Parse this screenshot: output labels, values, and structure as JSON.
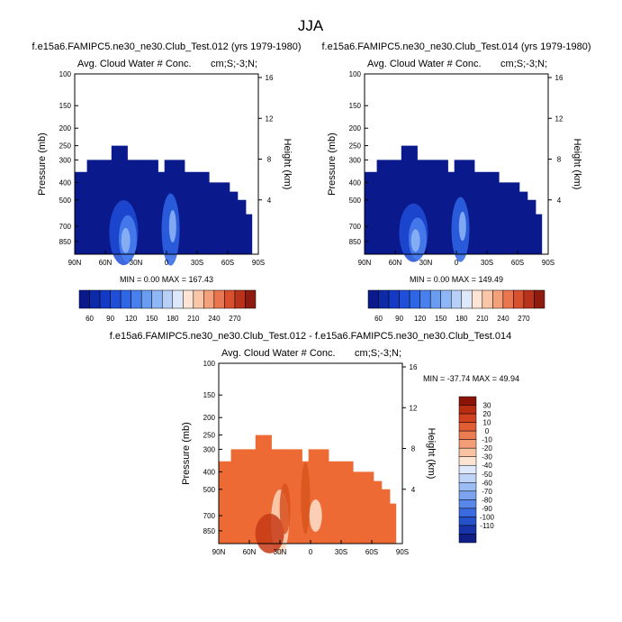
{
  "figure_title": "JJA",
  "colors": {
    "background": "#ffffff",
    "absolute_scale": [
      "#0a1a8c",
      "#0d2aa8",
      "#1439c4",
      "#1f4ed8",
      "#2f66e6",
      "#4a80ee",
      "#6a9cf2",
      "#8fb6f6",
      "#b8d0f8",
      "#dde9fb",
      "#fde4d4",
      "#f9c6a8",
      "#f4a07a",
      "#ea7650",
      "#d9502e",
      "#b9321c",
      "#8e1a10"
    ],
    "difference_scale": [
      "#0f1f86",
      "#1733a9",
      "#2450c9",
      "#3a6be0",
      "#5a88ea",
      "#7ba3f0",
      "#9cbcf4",
      "#bed3f8",
      "#dde8fb",
      "#fde3d2",
      "#f9c2a3",
      "#f49e78",
      "#ed7c52",
      "#e35d34",
      "#d2421e",
      "#b82c12",
      "#8c1407"
    ],
    "field_absolute": "#0a1a8c",
    "field_difference": "#ee6a34"
  },
  "chart_data": [
    {
      "type": "heatmap",
      "title": "f.e15a6.FAMIPC5.ne30_ne30.Club_Test.012 (yrs 1979-1980)",
      "subtitle_left": "Avg. Cloud Water # Conc.",
      "subtitle_right": "cm;S;-3;N;",
      "xlabel": "",
      "ylabel": "Pressure (mb)",
      "y2label": "Height (km)",
      "x_ticks": [
        "90N",
        "60N",
        "30N",
        "0",
        "30S",
        "60S",
        "90S"
      ],
      "x_values": [
        90,
        60,
        30,
        0,
        -30,
        -60,
        -90
      ],
      "y_ticks": [
        100,
        150,
        200,
        250,
        300,
        400,
        500,
        700,
        850
      ],
      "y2_ticks": [
        16,
        12,
        8,
        4
      ],
      "ylim": [
        1000,
        100
      ],
      "min_label": "MIN =   0.00   MAX = 167.43",
      "min": 0.0,
      "max": 167.43,
      "colorbar_labels": [
        "60",
        "90",
        "120",
        "150",
        "180",
        "210",
        "240",
        "270"
      ],
      "colorbar_levels": [
        60,
        90,
        120,
        150,
        180,
        210,
        240,
        270
      ]
    },
    {
      "type": "heatmap",
      "title": "f.e15a6.FAMIPC5.ne30_ne30.Club_Test.014 (yrs 1979-1980)",
      "subtitle_left": "Avg. Cloud Water # Conc.",
      "subtitle_right": "cm;S;-3;N;",
      "xlabel": "",
      "ylabel": "Pressure (mb)",
      "y2label": "Height (km)",
      "x_ticks": [
        "90N",
        "60N",
        "30N",
        "0",
        "30S",
        "60S",
        "90S"
      ],
      "x_values": [
        90,
        60,
        30,
        0,
        -30,
        -60,
        -90
      ],
      "y_ticks": [
        100,
        150,
        200,
        250,
        300,
        400,
        500,
        700,
        850
      ],
      "y2_ticks": [
        16,
        12,
        8,
        4
      ],
      "ylim": [
        1000,
        100
      ],
      "min_label": "MIN =   0.00   MAX = 149.49",
      "min": 0.0,
      "max": 149.49,
      "colorbar_labels": [
        "60",
        "90",
        "120",
        "150",
        "180",
        "210",
        "240",
        "270"
      ],
      "colorbar_levels": [
        60,
        90,
        120,
        150,
        180,
        210,
        240,
        270
      ]
    },
    {
      "type": "heatmap",
      "title": "f.e15a6.FAMIPC5.ne30_ne30.Club_Test.012 - f.e15a6.FAMIPC5.ne30_ne30.Club_Test.014",
      "subtitle_left": "Avg. Cloud Water # Conc.",
      "subtitle_right": "cm;S;-3;N;",
      "xlabel": "",
      "ylabel": "Pressure (mb)",
      "y2label": "Height (km)",
      "x_ticks": [
        "90N",
        "60N",
        "30N",
        "0",
        "30S",
        "60S",
        "90S"
      ],
      "x_values": [
        90,
        60,
        30,
        0,
        -30,
        -60,
        -90
      ],
      "y_ticks": [
        100,
        150,
        200,
        250,
        300,
        400,
        500,
        700,
        850
      ],
      "y2_ticks": [
        16,
        12,
        8,
        4
      ],
      "ylim": [
        1000,
        100
      ],
      "min_label": "MIN = -37.74   MAX =  49.94",
      "min": -37.74,
      "max": 49.94,
      "colorbar_labels": [
        "30",
        "20",
        "10",
        "0",
        "-10",
        "-20",
        "-30",
        "-40",
        "-50",
        "-60",
        "-70",
        "-80",
        "-90",
        "-100",
        "-110"
      ],
      "colorbar_levels": [
        30,
        20,
        10,
        0,
        -10,
        -20,
        -30,
        -40,
        -50,
        -60,
        -70,
        -80,
        -90,
        -100,
        -110
      ]
    }
  ]
}
